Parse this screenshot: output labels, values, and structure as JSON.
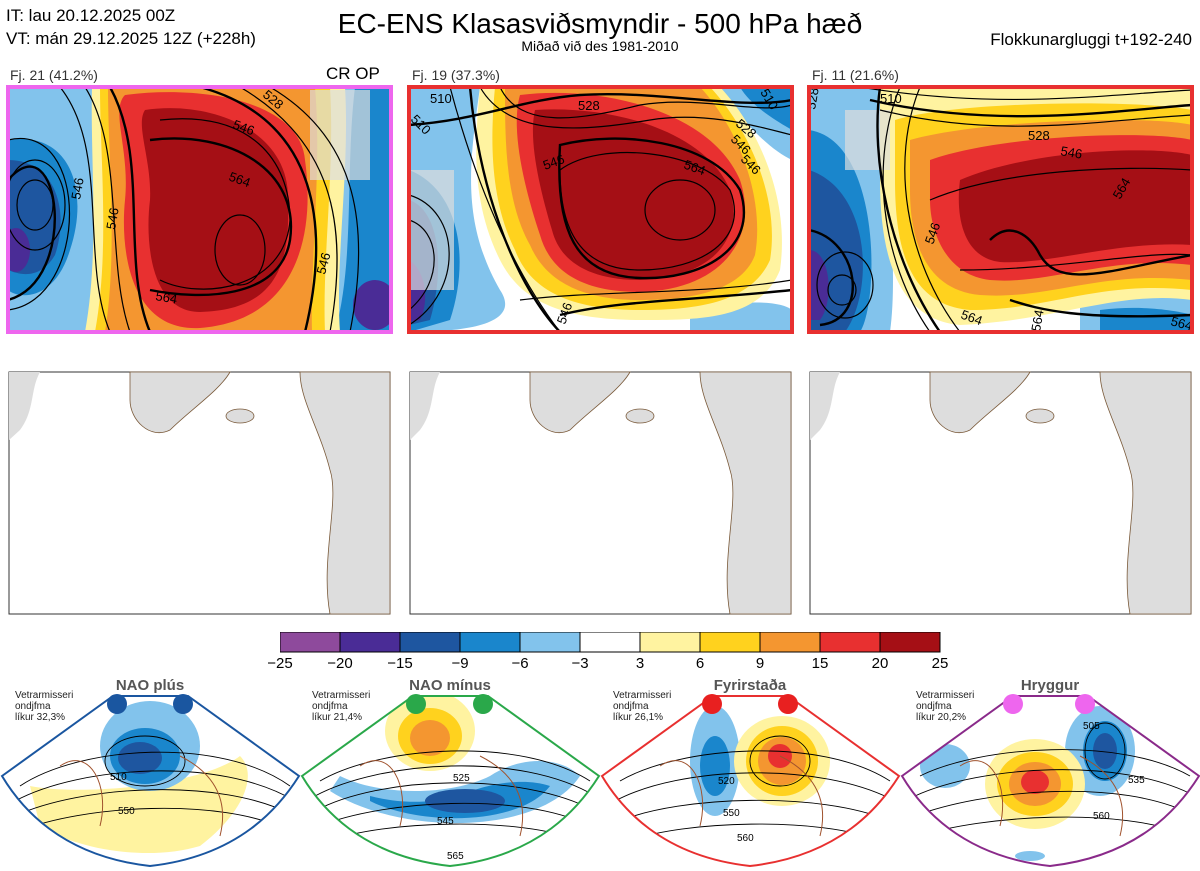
{
  "header": {
    "it_line": "IT: lau 20.12.2025 00Z",
    "vt_line": "VT: mán 29.12.2025 12Z  (+228h)",
    "title": "EC-ENS Klasasviðsmyndir - 500 hPa hæð",
    "subtitle": "Miðað við des 1981-2010",
    "window": "Flokkunargluggi t+192-240"
  },
  "clusters": [
    {
      "label": "Fj. 21 (41.2%)",
      "badge": "CR OP",
      "border_color": "#ee66ee",
      "contour_labels": [
        "528",
        "546",
        "564",
        "546",
        "564",
        "546",
        "546"
      ]
    },
    {
      "label": "Fj. 19 (37.3%)",
      "badge": "",
      "border_color": "#e83030",
      "contour_labels": [
        "510",
        "528",
        "528",
        "546",
        "564",
        "546",
        "546",
        "546",
        "510",
        "510"
      ]
    },
    {
      "label": "Fj. 11 (21.6%)",
      "badge": "",
      "border_color": "#e83030",
      "contour_labels": [
        "510",
        "528",
        "546",
        "564",
        "528",
        "546",
        "564",
        "564",
        "564"
      ]
    }
  ],
  "colorbar": {
    "colors": [
      "#8e4a9c",
      "#4a2c96",
      "#1e56a0",
      "#1a86cc",
      "#82c3ec",
      "#ffffff",
      "#fff3a0",
      "#ffd21e",
      "#f49630",
      "#e83030",
      "#a50f15"
    ],
    "tick_labels": [
      "−25",
      "−20",
      "−15",
      "−9",
      "−6",
      "−3",
      "3",
      "6",
      "9",
      "15",
      "20",
      "25"
    ]
  },
  "regimes": [
    {
      "name": "NAO plús",
      "note_line1": "Vetrarmisseri",
      "note_line2": "ondjfma",
      "note_line3": "líkur 32,3%",
      "border_color": "#1a56a0",
      "dot_color": "#1a56a0",
      "contour_labels": [
        "510",
        "550"
      ]
    },
    {
      "name": "NAO mínus",
      "note_line1": "Vetrarmisseri",
      "note_line2": "ondjfma",
      "note_line3": "líkur 21,4%",
      "border_color": "#2aa84a",
      "dot_color": "#2aa84a",
      "contour_labels": [
        "525",
        "545",
        "565"
      ]
    },
    {
      "name": "Fyrirstaða",
      "note_line1": "Vetrarmisseri",
      "note_line2": "ondjfma",
      "note_line3": "líkur 26,1%",
      "border_color": "#e83030",
      "dot_color": "#e82020",
      "contour_labels": [
        "520",
        "550",
        "560"
      ]
    },
    {
      "name": "Hryggur",
      "note_line1": "Vetrarmisseri",
      "note_line2": "ondjfma",
      "note_line3": "líkur 20,2%",
      "border_color": "#8a2a8a",
      "dot_color": "#ee66ee",
      "contour_labels": [
        "505",
        "535",
        "560"
      ]
    }
  ],
  "chart_data": {
    "type": "heatmap",
    "title": "EC-ENS Klasasviðsmyndir - 500 hPa hæð",
    "subtitle": "Miðað við des 1981-2010",
    "colorbar_ticks": [
      -25,
      -20,
      -15,
      -9,
      -6,
      -3,
      3,
      6,
      9,
      15,
      20,
      25
    ],
    "series": [
      {
        "name": "Fj. 21",
        "percent": 41.2,
        "tag": "CR OP"
      },
      {
        "name": "Fj. 19",
        "percent": 37.3
      },
      {
        "name": "Fj. 11",
        "percent": 21.6
      }
    ],
    "regimes": [
      {
        "name": "NAO plús",
        "percent": 32.3
      },
      {
        "name": "NAO mínus",
        "percent": 21.4
      },
      {
        "name": "Fyrirstaða",
        "percent": 26.1
      },
      {
        "name": "Hryggur",
        "percent": 20.2
      }
    ]
  }
}
